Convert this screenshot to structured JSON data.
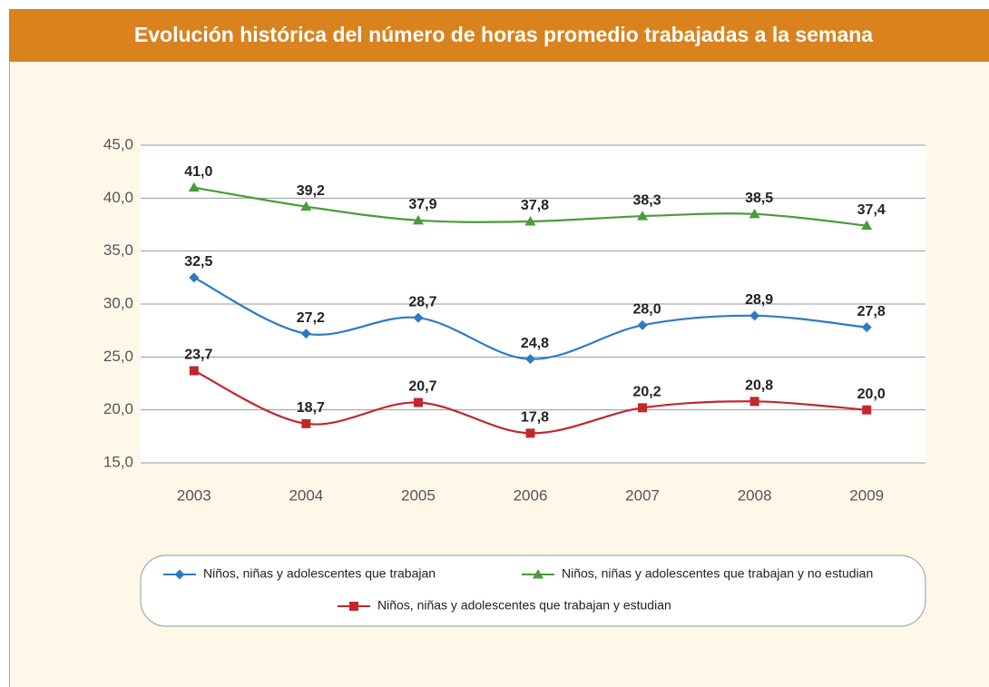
{
  "chart_data": {
    "type": "line",
    "title": "Evolución histórica del número de horas promedio trabajadas a la semana",
    "categories": [
      "2003",
      "2004",
      "2005",
      "2006",
      "2007",
      "2008",
      "2009"
    ],
    "ylim": [
      15,
      45
    ],
    "yticks": [
      {
        "value": 15,
        "label": "15,0"
      },
      {
        "value": 20,
        "label": "20,0"
      },
      {
        "value": 25,
        "label": "25,0"
      },
      {
        "value": 30,
        "label": "30,0"
      },
      {
        "value": 35,
        "label": "35,0"
      },
      {
        "value": 40,
        "label": "40,0"
      },
      {
        "value": 45,
        "label": "45,0"
      }
    ],
    "grid": true,
    "series": [
      {
        "name": "Niños, niñas y adolescentes que trabajan",
        "color": "#2b7bc4",
        "marker": "diamond",
        "values": [
          32.5,
          27.2,
          28.7,
          24.8,
          28.0,
          28.9,
          27.8
        ],
        "value_labels": [
          "32,5",
          "27,2",
          "28,7",
          "24,8",
          "28,0",
          "28,9",
          "27,8"
        ]
      },
      {
        "name": "Niños, niñas y adolescentes que trabajan y no estudian",
        "color": "#4a9b3c",
        "marker": "triangle",
        "values": [
          41.0,
          39.2,
          37.9,
          37.8,
          38.3,
          38.5,
          37.4
        ],
        "value_labels": [
          "41,0",
          "39,2",
          "37,9",
          "37,8",
          "38,3",
          "38,5",
          "37,4"
        ]
      },
      {
        "name": "Niños, niñas y adolescentes que trabajan y estudian",
        "color": "#c1272d",
        "marker": "square",
        "values": [
          23.7,
          18.7,
          20.7,
          17.8,
          20.2,
          20.8,
          20.0
        ],
        "value_labels": [
          "23,7",
          "18,7",
          "20,7",
          "17,8",
          "20,2",
          "20,8",
          "20,0"
        ]
      }
    ]
  }
}
